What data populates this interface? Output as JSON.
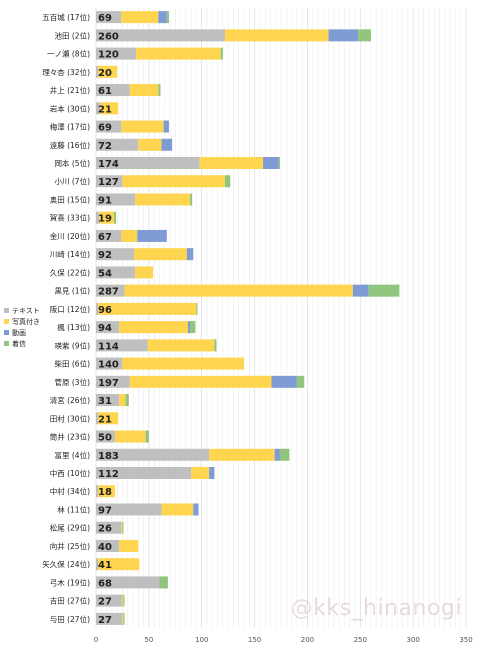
{
  "watermark": "@kks_hinanogi",
  "colors": {
    "text": "#bfbfbf",
    "photo": "#ffd54f",
    "video": "#7f9bd6",
    "costume": "#8fc57c"
  },
  "chart_data": {
    "type": "bar",
    "stacked": true,
    "orientation": "horizontal",
    "title": "",
    "xlabel": "",
    "ylabel": "",
    "xlim": [
      0,
      350
    ],
    "xticks": [
      0,
      50,
      100,
      150,
      200,
      250,
      300,
      350
    ],
    "grid": true,
    "legend_position": "left",
    "categories": [
      "五百城 (17位)",
      "池田 (2位)",
      "一ノ瀬 (8位)",
      "理々杏 (32位)",
      "井上 (21位)",
      "岩本 (30位)",
      "梅澤 (17位)",
      "遠藤 (16位)",
      "岡本 (5位)",
      "小川 (7位)",
      "奥田 (15位)",
      "賀喜 (33位)",
      "金川 (20位)",
      "川崎 (14位)",
      "久保 (22位)",
      "黒見 (1位)",
      "阪口 (12位)",
      "楓 (13位)",
      "瑛紫 (9位)",
      "柴田 (6位)",
      "菅原 (3位)",
      "清宮 (26位)",
      "田村 (30位)",
      "筒井 (23位)",
      "冨里 (4位)",
      "中西 (10位)",
      "中村 (34位)",
      "林 (11位)",
      "松尾 (29位)",
      "向井 (25位)",
      "矢久保 (24位)",
      "弓木 (19位)",
      "吉田 (27位)",
      "与田 (27位)"
    ],
    "totals": [
      69,
      260,
      120,
      20,
      61,
      21,
      69,
      72,
      174,
      127,
      91,
      19,
      67,
      92,
      54,
      287,
      96,
      94,
      114,
      140,
      197,
      31,
      21,
      50,
      183,
      112,
      18,
      97,
      26,
      40,
      41,
      68,
      27,
      27
    ],
    "series": [
      {
        "name": "テキスト",
        "color": "#bfbfbf",
        "values": [
          24,
          122,
          38,
          2,
          32,
          4,
          24,
          40,
          98,
          25,
          37,
          3,
          24,
          36,
          37,
          27,
          2,
          22,
          49,
          25,
          32,
          22,
          2,
          18,
          107,
          90,
          2,
          62,
          24,
          22,
          2,
          60,
          25,
          25
        ]
      },
      {
        "name": "写真付き",
        "color": "#ffd54f",
        "values": [
          35,
          98,
          80,
          18,
          27,
          17,
          40,
          22,
          60,
          97,
          52,
          14,
          15,
          50,
          17,
          216,
          93,
          65,
          63,
          115,
          134,
          6,
          19,
          29,
          62,
          17,
          16,
          30,
          1,
          18,
          39,
          0,
          1,
          1
        ]
      },
      {
        "name": "動画",
        "color": "#7f9bd6",
        "values": [
          8,
          28,
          0,
          0,
          0,
          0,
          5,
          10,
          15,
          0,
          0,
          0,
          28,
          6,
          0,
          15,
          0,
          2,
          0,
          0,
          24,
          0,
          0,
          0,
          5,
          5,
          0,
          5,
          0,
          0,
          0,
          0,
          0,
          0
        ]
      },
      {
        "name": "着信",
        "color": "#8fc57c",
        "values": [
          2,
          12,
          2,
          0,
          2,
          0,
          0,
          0,
          1,
          5,
          2,
          2,
          0,
          0,
          0,
          29,
          1,
          5,
          2,
          0,
          7,
          3,
          0,
          3,
          9,
          0,
          0,
          0,
          1,
          0,
          0,
          8,
          1,
          1
        ]
      }
    ]
  }
}
